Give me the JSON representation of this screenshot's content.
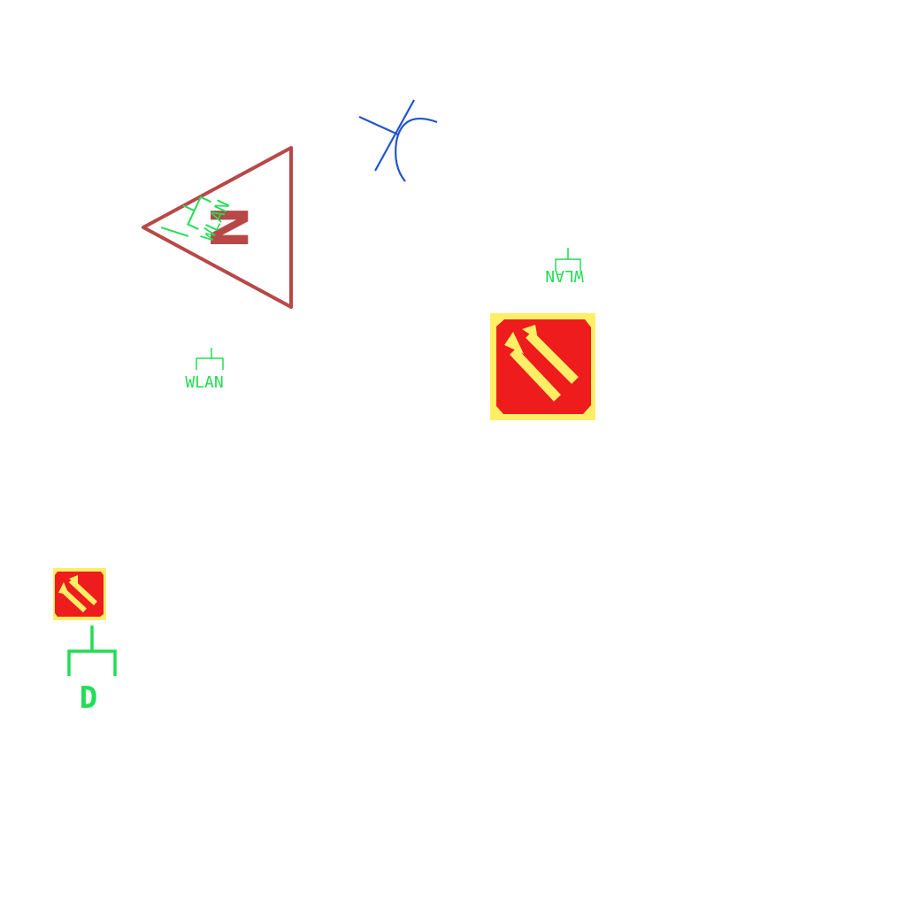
{
  "colors": {
    "background": "#ffffff",
    "wlan_green": "#22dd55",
    "triangle_red": "#b84848",
    "arc_blue": "#2255cc",
    "sign_red": "#ee1c1c",
    "sign_yellow": "#ffee66"
  },
  "symbols": {
    "triangle_letter": "N",
    "triangle_wlan_label": "WLAN",
    "wlan_label_left": "WLAN",
    "wlan_label_right": "WLAN",
    "d_label": "D"
  },
  "icons": {
    "triangle_symbol": "n-warning-triangle-icon",
    "arc_symbol": "blue-arc-cross-icon",
    "large_sign": "fire-escape-arrows-sign-icon",
    "small_sign": "fire-escape-arrows-sign-small-icon"
  }
}
